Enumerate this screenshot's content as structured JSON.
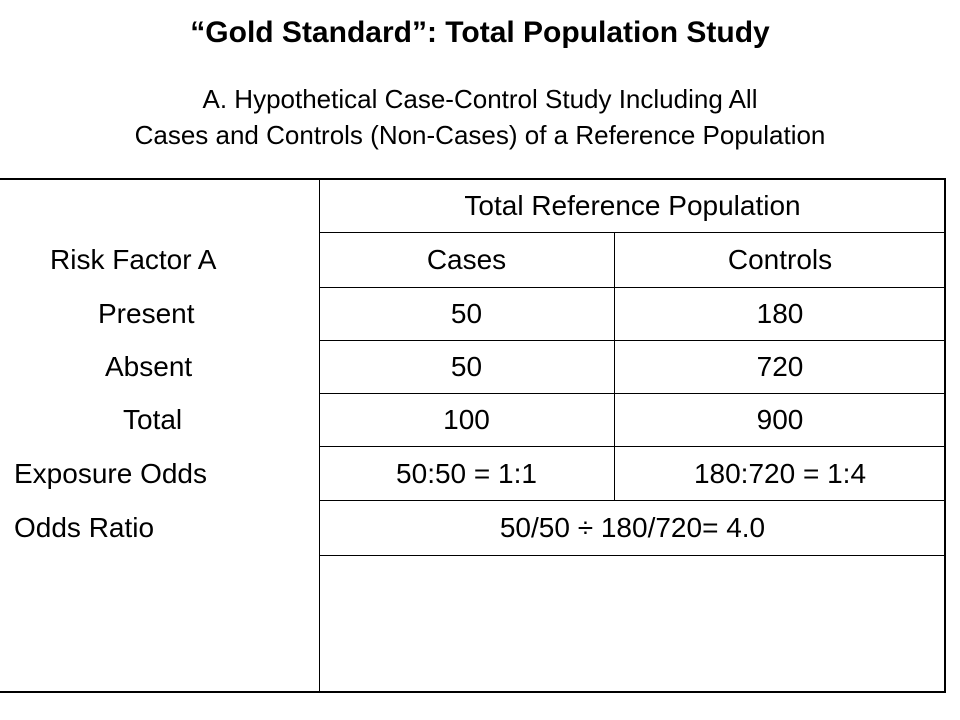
{
  "title": "“Gold Standard”: Total Population Study",
  "subtitle_line1": "A. Hypothetical Case-Control Study Including All",
  "subtitle_line2": "Cases and Controls (Non-Cases) of a Reference Population",
  "table": {
    "group_header": "Total Reference Population",
    "row_header": "Risk Factor A",
    "col_cases": "Cases",
    "col_controls": "Controls",
    "rows": [
      {
        "label": "Present",
        "cases": "50",
        "controls": "180"
      },
      {
        "label": "Absent",
        "cases": "50",
        "controls": "720"
      },
      {
        "label": "Total",
        "cases": "100",
        "controls": "900"
      },
      {
        "label": "Exposure Odds",
        "cases": "50:50 = 1:1",
        "controls": "180:720 = 1:4"
      }
    ],
    "odds_ratio_label": "Odds Ratio",
    "odds_ratio_value": "50/50 ÷ 180/720= 4.0"
  }
}
